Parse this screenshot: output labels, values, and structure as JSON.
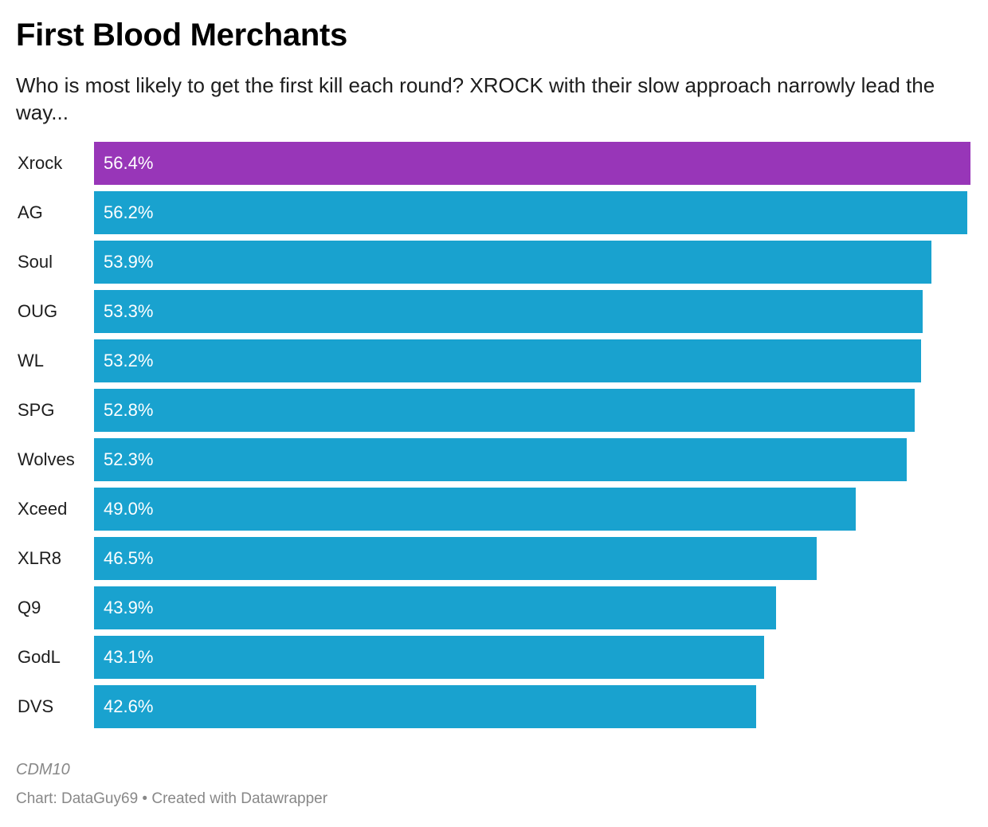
{
  "chart_data": {
    "type": "bar",
    "orientation": "horizontal",
    "title": "First Blood Merchants",
    "subtitle": "Who is most likely to get the first kill each round? XROCK with their slow approach narrowly lead the way...",
    "categories": [
      "Xrock",
      "AG",
      "Soul",
      "OUG",
      "WL",
      "SPG",
      "Wolves",
      "Xceed",
      "XLR8",
      "Q9",
      "GodL",
      "DVS"
    ],
    "values": [
      56.4,
      56.2,
      53.9,
      53.3,
      53.2,
      52.8,
      52.3,
      49.0,
      46.5,
      43.9,
      43.1,
      42.6
    ],
    "value_labels": [
      "56.4%",
      "56.2%",
      "53.9%",
      "53.3%",
      "53.2%",
      "52.8%",
      "52.3%",
      "49.0%",
      "46.5%",
      "43.9%",
      "43.1%",
      "42.6%"
    ],
    "unit": "%",
    "xlim": [
      0,
      56.4
    ],
    "highlight_category": "Xrock",
    "colors": {
      "default_bar": "#19a2cf",
      "highlight_bar": "#9836b8"
    },
    "grid": false,
    "legend": "none",
    "notes": "CDM10",
    "footer": "Chart: DataGuy69 • Created with Datawrapper"
  }
}
